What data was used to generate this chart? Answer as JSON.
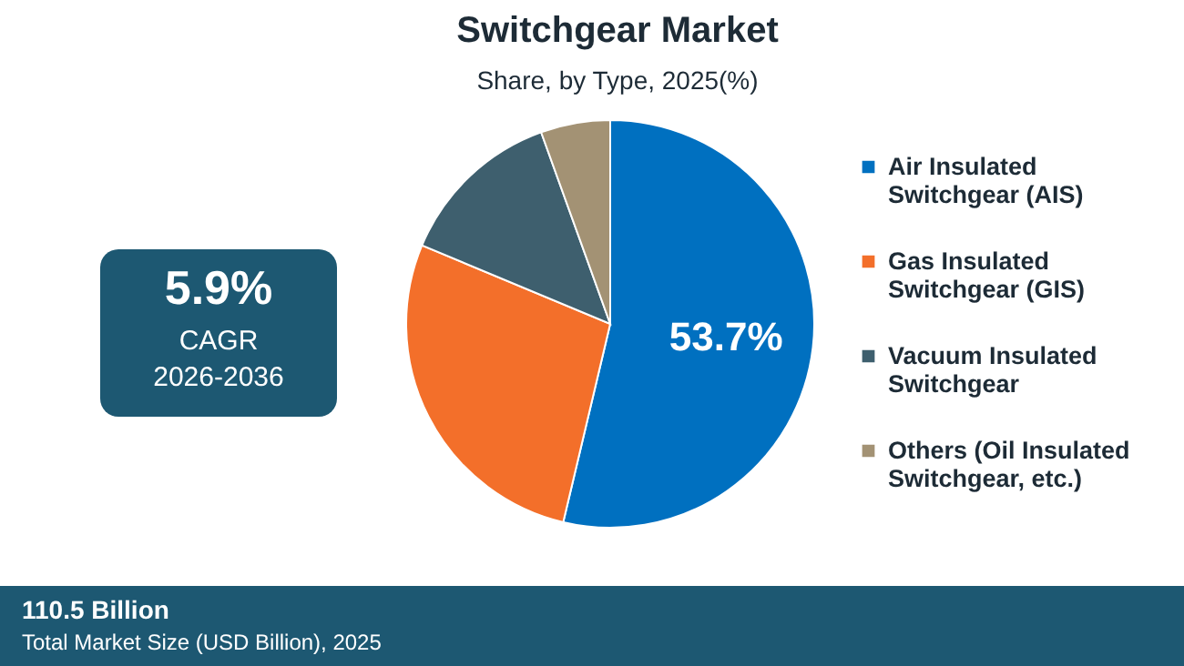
{
  "chart_data": {
    "type": "pie",
    "title": "Switchgear Market",
    "subtitle": "Share, by Type, 2025(%)",
    "categories": [
      "Air Insulated Switchgear (AIS)",
      "Gas Insulated Switchgear (GIS)",
      "Vacuum Insulated Switchgear",
      "Others (Oil Insulated Switchgear, etc.)"
    ],
    "values": [
      53.7,
      27.6,
      13.2,
      5.5
    ],
    "colors": [
      "#0070c0",
      "#f36f2a",
      "#3e5f6e",
      "#a39274"
    ],
    "value_labels": [
      "53.7%",
      null,
      null,
      null
    ],
    "legend": "right",
    "annotations": [
      "5.9%",
      "CAGR",
      "2026-2036",
      "110.5 Billion",
      "Total Market Size (USD Billion), 2025"
    ]
  }
}
